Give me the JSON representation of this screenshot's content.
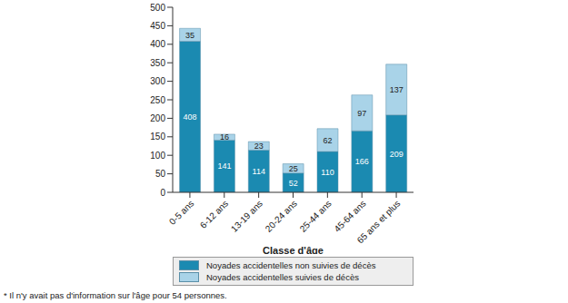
{
  "chart_data": {
    "type": "bar",
    "x_label": "Classe d'âge",
    "categories": [
      "0-5 ans",
      "6-12 ans",
      "13-19 ans",
      "20-24 ans",
      "25-44 ans",
      "45-64 ans",
      "65 ans et plus"
    ],
    "series": [
      {
        "name": "Noyades accidentelles non suivies de décès",
        "color": "#1b8ab1",
        "values": [
          408,
          141,
          114,
          52,
          110,
          166,
          209
        ]
      },
      {
        "name": "Noyades accidentelles suivies de décès",
        "color": "#a9d3e8",
        "values": [
          35,
          16,
          23,
          25,
          62,
          97,
          137
        ]
      }
    ],
    "ylim": [
      0,
      500
    ],
    "yticks": [
      0,
      50,
      100,
      150,
      200,
      250,
      300,
      350,
      400,
      450,
      500
    ],
    "stacked": true,
    "data_labels": true,
    "grid": false,
    "legend": "bottom",
    "footnote": "* Il n'y avait pas d'information sur l'âge pour 54 personnes."
  }
}
